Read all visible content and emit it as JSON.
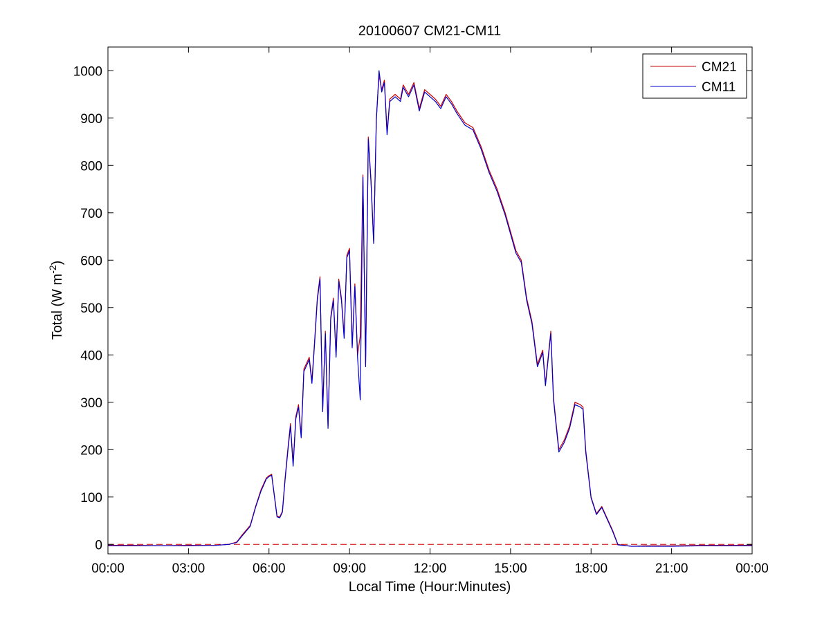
{
  "chart_data": {
    "type": "line",
    "title": "20100607 CM21-CM11",
    "xlabel": "Local Time (Hour:Minutes)",
    "ylabel": {
      "prefix": "Total (W m",
      "superscript": "-2",
      "suffix": ")"
    },
    "xlim": [
      0,
      24
    ],
    "ylim": [
      -20,
      1050
    ],
    "xticks": [
      0,
      3,
      6,
      9,
      12,
      15,
      18,
      21,
      24
    ],
    "xtick_labels": [
      "00:00",
      "03:00",
      "06:00",
      "09:00",
      "12:00",
      "15:00",
      "18:00",
      "21:00",
      "00:00"
    ],
    "yticks": [
      0,
      100,
      200,
      300,
      400,
      500,
      600,
      700,
      800,
      900,
      1000
    ],
    "ytick_labels": [
      "0",
      "100",
      "200",
      "300",
      "400",
      "500",
      "600",
      "700",
      "800",
      "900",
      "1000"
    ],
    "grid": false,
    "legend_position": "top-right",
    "zero_line": {
      "style": "dashed",
      "color": "#cc0000"
    },
    "x_unit": "hours",
    "x": [
      0,
      1,
      2,
      3,
      4,
      4.5,
      4.8,
      5.0,
      5.3,
      5.5,
      5.7,
      5.9,
      6.0,
      6.1,
      6.3,
      6.4,
      6.5,
      6.6,
      6.7,
      6.8,
      6.9,
      7.0,
      7.1,
      7.2,
      7.3,
      7.5,
      7.6,
      7.7,
      7.8,
      7.9,
      8.0,
      8.1,
      8.2,
      8.3,
      8.4,
      8.5,
      8.6,
      8.7,
      8.8,
      8.9,
      9.0,
      9.1,
      9.2,
      9.3,
      9.4,
      9.5,
      9.6,
      9.7,
      9.8,
      9.9,
      10.0,
      10.1,
      10.2,
      10.3,
      10.4,
      10.5,
      10.7,
      10.9,
      11.0,
      11.2,
      11.4,
      11.6,
      11.8,
      12.0,
      12.2,
      12.4,
      12.6,
      12.8,
      13.0,
      13.3,
      13.6,
      13.9,
      14.2,
      14.5,
      14.8,
      15.0,
      15.2,
      15.4,
      15.5,
      15.6,
      15.8,
      16.0,
      16.2,
      16.3,
      16.5,
      16.6,
      16.8,
      17.0,
      17.2,
      17.4,
      17.6,
      17.7,
      17.8,
      18.0,
      18.2,
      18.4,
      18.6,
      18.8,
      19.0,
      19.5,
      20,
      21,
      22,
      23,
      24
    ],
    "series": [
      {
        "name": "CM21",
        "color": "#cc0000",
        "values": [
          -2,
          -2,
          -3,
          -2,
          -2,
          0,
          5,
          20,
          40,
          80,
          115,
          140,
          145,
          148,
          60,
          58,
          70,
          140,
          200,
          255,
          170,
          270,
          295,
          230,
          370,
          395,
          345,
          430,
          520,
          565,
          285,
          450,
          250,
          480,
          520,
          400,
          560,
          520,
          440,
          610,
          625,
          420,
          550,
          400,
          440,
          780,
          380,
          860,
          770,
          640,
          900,
          990,
          960,
          980,
          870,
          940,
          950,
          940,
          970,
          950,
          975,
          920,
          960,
          950,
          940,
          925,
          950,
          935,
          915,
          890,
          880,
          840,
          790,
          750,
          700,
          660,
          620,
          600,
          560,
          520,
          470,
          380,
          410,
          340,
          450,
          310,
          200,
          220,
          250,
          300,
          295,
          290,
          200,
          100,
          65,
          80,
          55,
          30,
          0,
          -4,
          -3,
          -3,
          -2,
          -2,
          -2
        ]
      },
      {
        "name": "CM11",
        "color": "#0000cc",
        "values": [
          -3,
          -3,
          -3,
          -3,
          -2,
          0,
          4,
          18,
          38,
          78,
          112,
          138,
          143,
          146,
          58,
          56,
          68,
          136,
          195,
          250,
          165,
          265,
          290,
          225,
          365,
          390,
          340,
          425,
          515,
          560,
          280,
          445,
          245,
          475,
          515,
          395,
          555,
          515,
          435,
          605,
          620,
          415,
          545,
          395,
          305,
          775,
          375,
          855,
          765,
          635,
          895,
          1000,
          955,
          975,
          865,
          935,
          945,
          935,
          965,
          945,
          970,
          915,
          955,
          945,
          935,
          920,
          945,
          930,
          910,
          885,
          875,
          835,
          785,
          745,
          695,
          655,
          615,
          595,
          555,
          515,
          465,
          375,
          405,
          335,
          445,
          305,
          195,
          215,
          245,
          295,
          290,
          285,
          195,
          98,
          63,
          78,
          53,
          28,
          -1,
          -4,
          -4,
          -4,
          -3,
          -3,
          -3
        ]
      }
    ]
  }
}
